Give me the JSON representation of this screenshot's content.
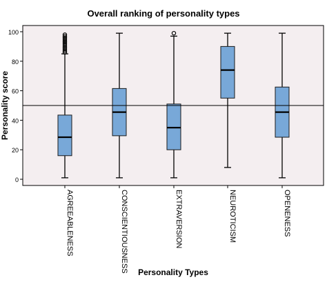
{
  "chart_data": {
    "type": "box",
    "title": "Overall ranking of personality types",
    "xlabel": "Personality Types",
    "ylabel": "Personality score",
    "ylim": [
      -4,
      104
    ],
    "yticks": [
      0,
      20,
      40,
      60,
      80,
      100
    ],
    "reference_line": 50,
    "grid": false,
    "colors": {
      "plot_background": "#f4eef0",
      "box_fill": "#78a8d8",
      "box_stroke": "#1a1a1a",
      "line": "#000000"
    },
    "categories": [
      "AGREEABLENESS",
      "CONSCIENTIOUSNESS",
      "EXTRAVERSION",
      "NEUROTICISM",
      "OPENENESS"
    ],
    "boxes": [
      {
        "label": "AGREEABLENESS",
        "min": 1,
        "q1": 16,
        "median": 28.5,
        "q3": 43.5,
        "max": 85,
        "outliers": [
          86,
          87,
          88,
          89,
          90,
          91,
          92,
          93,
          94,
          95,
          96,
          97,
          98
        ]
      },
      {
        "label": "CONSCIENTIOUSNESS",
        "min": 1,
        "q1": 29.5,
        "median": 45.5,
        "q3": 61.5,
        "max": 99,
        "outliers": []
      },
      {
        "label": "EXTRAVERSION",
        "min": 1,
        "q1": 20,
        "median": 35,
        "q3": 51,
        "max": 97,
        "outliers": [
          99
        ]
      },
      {
        "label": "NEUROTICISM",
        "min": 8,
        "q1": 55,
        "median": 74,
        "q3": 90,
        "max": 99,
        "outliers": []
      },
      {
        "label": "OPENENESS",
        "min": 1,
        "q1": 28.5,
        "median": 45.5,
        "q3": 62.5,
        "max": 99,
        "outliers": []
      }
    ]
  }
}
